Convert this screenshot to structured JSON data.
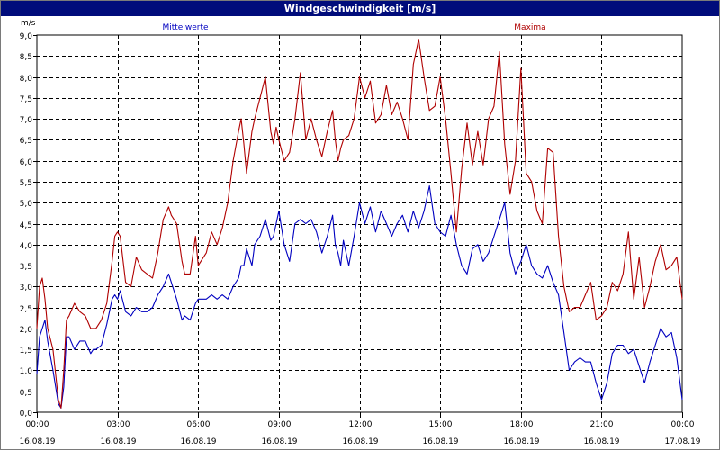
{
  "window": {
    "title": "Windgeschwindigkeit [m/s]"
  },
  "chart_data": {
    "type": "line",
    "title": "Windgeschwindigkeit [m/s]",
    "ylabel": "m/s",
    "ylim": [
      0,
      9
    ],
    "yticks": [
      "0,0",
      "0,5",
      "1,0",
      "1,5",
      "2,0",
      "2,5",
      "3,0",
      "3,5",
      "4,0",
      "4,5",
      "5,0",
      "5,5",
      "6,0",
      "6,5",
      "7,0",
      "7,5",
      "8,0",
      "8,5",
      "9,0"
    ],
    "xlim": [
      0,
      24
    ],
    "xticks": [
      {
        "time": "00:00",
        "date": "16.08.19"
      },
      {
        "time": "03:00",
        "date": "16.08.19"
      },
      {
        "time": "06:00",
        "date": "16.08.19"
      },
      {
        "time": "09:00",
        "date": "16.08.19"
      },
      {
        "time": "12:00",
        "date": "16.08.19"
      },
      {
        "time": "15:00",
        "date": "16.08.19"
      },
      {
        "time": "18:00",
        "date": "16.08.19"
      },
      {
        "time": "21:00",
        "date": "16.08.19"
      },
      {
        "time": "00:00",
        "date": "17.08.19"
      }
    ],
    "grid": true,
    "series": [
      {
        "name": "Mittelwerte",
        "color": "#0000c0",
        "x": [
          0.0,
          0.1,
          0.2,
          0.3,
          0.4,
          0.6,
          0.8,
          0.9,
          1.0,
          1.1,
          1.2,
          1.4,
          1.6,
          1.8,
          2.0,
          2.1,
          2.2,
          2.4,
          2.6,
          2.8,
          2.9,
          3.0,
          3.1,
          3.3,
          3.5,
          3.7,
          3.9,
          4.1,
          4.3,
          4.5,
          4.7,
          4.9,
          5.0,
          5.2,
          5.4,
          5.5,
          5.7,
          5.9,
          6.0,
          6.1,
          6.3,
          6.5,
          6.7,
          6.9,
          7.1,
          7.3,
          7.5,
          7.6,
          7.7,
          7.8,
          8.0,
          8.1,
          8.3,
          8.5,
          8.7,
          8.8,
          8.9,
          9.0,
          9.2,
          9.4,
          9.6,
          9.8,
          10.0,
          10.2,
          10.4,
          10.6,
          10.8,
          11.0,
          11.1,
          11.2,
          11.3,
          11.4,
          11.6,
          11.8,
          12.0,
          12.2,
          12.4,
          12.6,
          12.8,
          13.0,
          13.2,
          13.4,
          13.6,
          13.8,
          14.0,
          14.2,
          14.4,
          14.6,
          14.8,
          15.0,
          15.2,
          15.4,
          15.6,
          15.8,
          16.0,
          16.2,
          16.4,
          16.6,
          16.8,
          17.0,
          17.2,
          17.4,
          17.6,
          17.8,
          18.0,
          18.2,
          18.4,
          18.6,
          18.8,
          19.0,
          19.2,
          19.4,
          19.6,
          19.8,
          20.0,
          20.2,
          20.4,
          20.6,
          20.8,
          21.0,
          21.2,
          21.4,
          21.6,
          21.8,
          22.0,
          22.2,
          22.4,
          22.6,
          22.8,
          23.0,
          23.2,
          23.4,
          23.6,
          23.8,
          24.0
        ],
        "y": [
          0.9,
          1.8,
          2.0,
          2.2,
          1.7,
          1.0,
          0.2,
          0.1,
          0.6,
          1.8,
          1.8,
          1.5,
          1.7,
          1.7,
          1.4,
          1.5,
          1.5,
          1.6,
          2.1,
          2.7,
          2.8,
          2.7,
          2.9,
          2.4,
          2.3,
          2.5,
          2.4,
          2.4,
          2.5,
          2.8,
          3.0,
          3.3,
          3.1,
          2.7,
          2.2,
          2.3,
          2.2,
          2.6,
          2.7,
          2.7,
          2.7,
          2.8,
          2.7,
          2.8,
          2.7,
          3.0,
          3.2,
          3.5,
          3.5,
          3.9,
          3.5,
          4.0,
          4.2,
          4.6,
          4.1,
          4.2,
          4.5,
          4.8,
          4.0,
          3.6,
          4.5,
          4.6,
          4.5,
          4.6,
          4.3,
          3.8,
          4.2,
          4.7,
          4.0,
          3.8,
          3.5,
          4.1,
          3.5,
          4.2,
          5.0,
          4.5,
          4.9,
          4.3,
          4.8,
          4.5,
          4.2,
          4.5,
          4.7,
          4.3,
          4.8,
          4.4,
          4.8,
          5.4,
          4.5,
          4.3,
          4.2,
          4.7,
          4.0,
          3.5,
          3.3,
          3.9,
          4.0,
          3.6,
          3.8,
          4.2,
          4.6,
          5.0,
          3.8,
          3.3,
          3.6,
          4.0,
          3.5,
          3.3,
          3.2,
          3.5,
          3.1,
          2.8,
          1.9,
          1.0,
          1.2,
          1.3,
          1.2,
          1.2,
          0.7,
          0.3,
          0.7,
          1.4,
          1.6,
          1.6,
          1.4,
          1.5,
          1.1,
          0.7,
          1.2,
          1.6,
          2.0,
          1.8,
          1.9,
          1.3,
          0.3
        ]
      },
      {
        "name": "Maxima",
        "color": "#b00000",
        "x": [
          0.0,
          0.1,
          0.2,
          0.3,
          0.4,
          0.6,
          0.8,
          0.9,
          1.0,
          1.1,
          1.2,
          1.4,
          1.6,
          1.8,
          2.0,
          2.1,
          2.2,
          2.4,
          2.6,
          2.8,
          2.9,
          3.0,
          3.1,
          3.3,
          3.5,
          3.7,
          3.9,
          4.1,
          4.3,
          4.5,
          4.7,
          4.9,
          5.0,
          5.2,
          5.4,
          5.5,
          5.7,
          5.9,
          6.0,
          6.1,
          6.3,
          6.5,
          6.7,
          6.9,
          7.1,
          7.3,
          7.5,
          7.6,
          7.7,
          7.8,
          8.0,
          8.1,
          8.3,
          8.5,
          8.7,
          8.8,
          8.9,
          9.0,
          9.2,
          9.4,
          9.6,
          9.8,
          10.0,
          10.2,
          10.4,
          10.6,
          10.8,
          11.0,
          11.1,
          11.2,
          11.3,
          11.4,
          11.6,
          11.8,
          12.0,
          12.2,
          12.4,
          12.6,
          12.8,
          13.0,
          13.2,
          13.4,
          13.6,
          13.8,
          14.0,
          14.2,
          14.4,
          14.6,
          14.8,
          15.0,
          15.2,
          15.4,
          15.6,
          15.8,
          16.0,
          16.2,
          16.4,
          16.6,
          16.8,
          17.0,
          17.2,
          17.4,
          17.6,
          17.8,
          18.0,
          18.2,
          18.4,
          18.6,
          18.8,
          19.0,
          19.2,
          19.4,
          19.6,
          19.8,
          20.0,
          20.2,
          20.4,
          20.6,
          20.8,
          21.0,
          21.2,
          21.4,
          21.6,
          21.8,
          22.0,
          22.2,
          22.4,
          22.6,
          22.8,
          23.0,
          23.2,
          23.4,
          23.6,
          23.8,
          24.0
        ],
        "y": [
          2.0,
          3.0,
          3.2,
          2.7,
          2.0,
          1.5,
          0.3,
          0.1,
          1.0,
          2.2,
          2.3,
          2.6,
          2.4,
          2.3,
          2.0,
          2.0,
          2.0,
          2.2,
          2.6,
          3.6,
          4.2,
          4.3,
          4.2,
          3.1,
          3.0,
          3.7,
          3.4,
          3.3,
          3.2,
          3.8,
          4.6,
          4.9,
          4.7,
          4.5,
          3.6,
          3.3,
          3.3,
          4.2,
          3.5,
          3.6,
          3.8,
          4.3,
          4.0,
          4.4,
          5.0,
          6.0,
          6.7,
          7.0,
          6.4,
          5.7,
          6.7,
          7.0,
          7.5,
          8.0,
          6.7,
          6.4,
          6.8,
          6.5,
          6.0,
          6.2,
          7.0,
          8.1,
          6.5,
          7.0,
          6.5,
          6.1,
          6.7,
          7.2,
          6.5,
          6.0,
          6.3,
          6.5,
          6.6,
          7.0,
          8.0,
          7.5,
          7.9,
          6.9,
          7.1,
          7.8,
          7.1,
          7.4,
          7.0,
          6.5,
          8.3,
          8.9,
          8.0,
          7.2,
          7.3,
          8.0,
          7.0,
          5.7,
          4.3,
          5.8,
          6.9,
          5.9,
          6.7,
          5.9,
          7.0,
          7.3,
          8.6,
          6.4,
          5.2,
          6.0,
          8.2,
          5.7,
          5.5,
          4.8,
          4.5,
          6.3,
          6.2,
          4.2,
          3.0,
          2.4,
          2.5,
          2.5,
          2.8,
          3.1,
          2.2,
          2.3,
          2.5,
          3.1,
          2.9,
          3.3,
          4.3,
          2.7,
          3.7,
          2.5,
          3.0,
          3.6,
          4.0,
          3.4,
          3.5,
          3.7,
          2.7
        ]
      }
    ]
  }
}
